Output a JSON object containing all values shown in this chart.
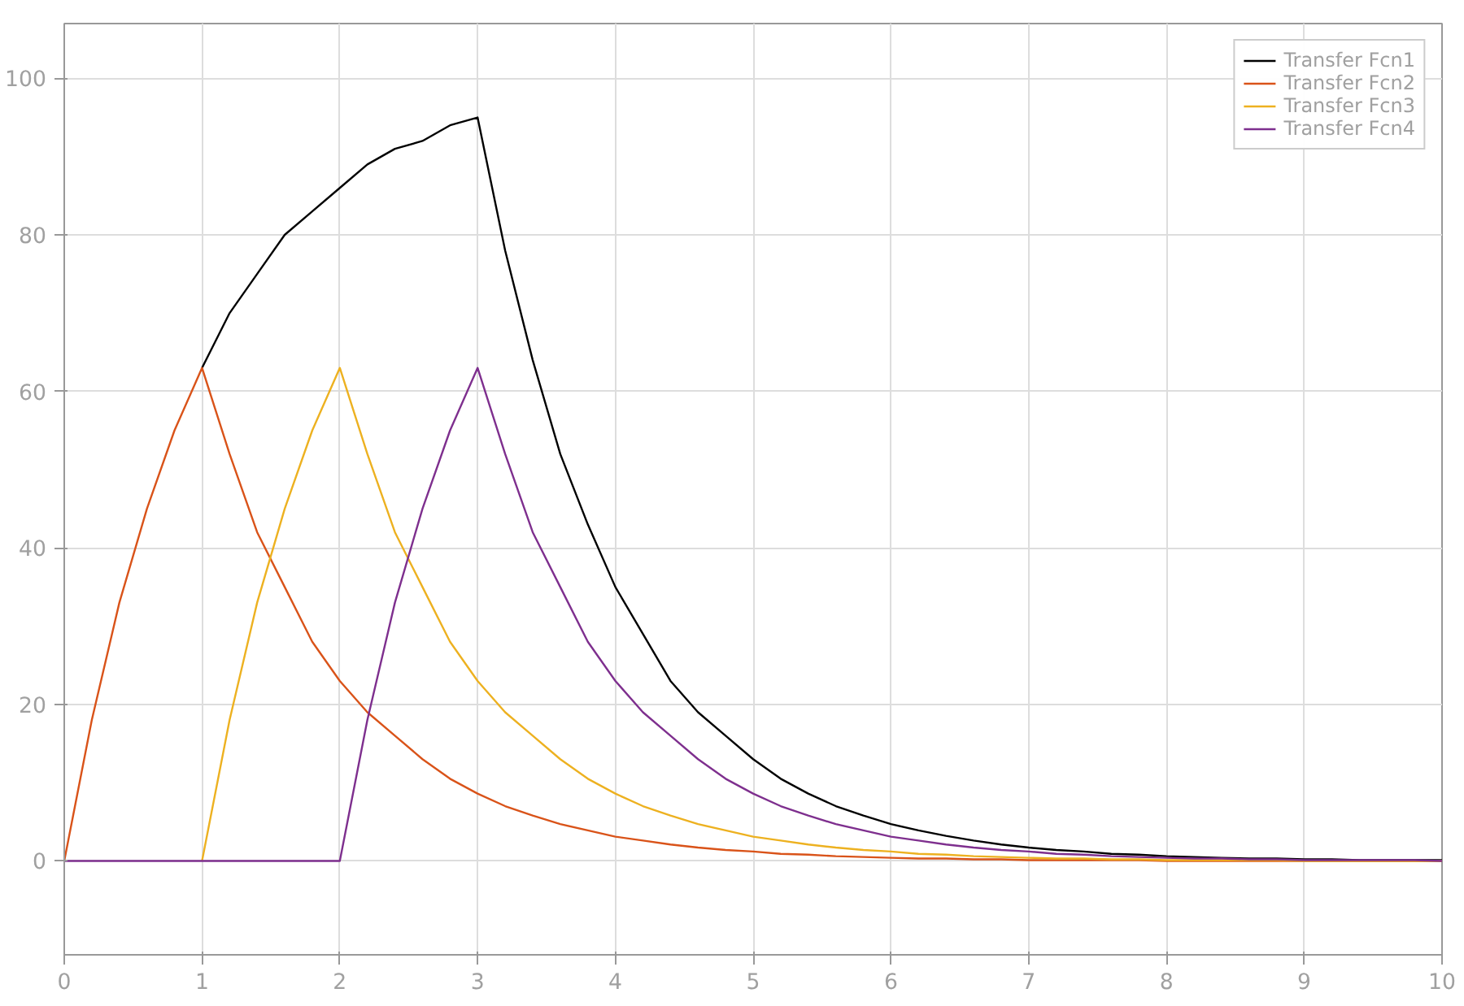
{
  "chart_data": {
    "type": "line",
    "x": [
      0,
      0.2,
      0.4,
      0.6,
      0.8,
      1,
      1.2,
      1.4,
      1.6,
      1.8,
      2,
      2.2,
      2.4,
      2.6,
      2.8,
      3,
      3.2,
      3.4,
      3.6,
      3.8,
      4,
      4.2,
      4.4,
      4.6,
      4.8,
      5,
      5.2,
      5.4,
      5.6,
      5.8,
      6,
      6.2,
      6.4,
      6.6,
      6.8,
      7,
      7.2,
      7.4,
      7.6,
      7.8,
      8,
      8.2,
      8.4,
      8.6,
      8.8,
      9,
      9.2,
      9.4,
      9.6,
      9.8,
      10
    ],
    "series": [
      {
        "name": "Transfer Fcn1",
        "color": "#000000",
        "values": [
          null,
          null,
          null,
          null,
          null,
          63,
          70,
          75,
          80,
          83,
          86,
          89,
          91,
          92,
          94,
          95,
          78,
          64,
          52,
          43,
          35,
          29,
          23,
          19,
          16,
          13,
          10.5,
          8.6,
          7.0,
          5.8,
          4.7,
          3.9,
          3.2,
          2.6,
          2.1,
          1.7,
          1.4,
          1.2,
          0.9,
          0.8,
          0.6,
          0.5,
          0.4,
          0.3,
          0.3,
          0.2,
          0.2,
          0.1,
          0.1,
          0.1,
          0.1
        ]
      },
      {
        "name": "Transfer Fcn2",
        "color": "#d95319",
        "values": [
          0,
          18,
          33,
          45,
          55,
          63,
          52,
          42,
          35,
          28,
          23,
          19,
          16,
          13,
          10.5,
          8.6,
          7.0,
          5.8,
          4.7,
          3.9,
          3.1,
          2.6,
          2.1,
          1.7,
          1.4,
          1.2,
          0.9,
          0.8,
          0.6,
          0.5,
          0.4,
          0.3,
          0.3,
          0.2,
          0.2,
          0.1,
          0.1,
          0.1,
          0.1,
          0.1,
          0,
          0,
          0,
          0,
          0,
          0,
          0,
          0,
          0,
          0,
          0
        ]
      },
      {
        "name": "Transfer Fcn3",
        "color": "#edb120",
        "values": [
          null,
          null,
          null,
          null,
          null,
          0,
          18,
          33,
          45,
          55,
          63,
          52,
          42,
          35,
          28,
          23,
          19,
          16,
          13,
          10.5,
          8.6,
          7.0,
          5.8,
          4.7,
          3.9,
          3.1,
          2.6,
          2.1,
          1.7,
          1.4,
          1.2,
          0.9,
          0.8,
          0.6,
          0.5,
          0.4,
          0.3,
          0.3,
          0.2,
          0.2,
          0.1,
          0.1,
          0.1,
          0.1,
          0.1,
          0,
          0,
          0,
          0,
          0,
          0
        ]
      },
      {
        "name": "Transfer Fcn4",
        "color": "#7e2f8e",
        "values": [
          0,
          0,
          0,
          0,
          0,
          0,
          0,
          0,
          0,
          0,
          0,
          18,
          33,
          45,
          55,
          63,
          52,
          42,
          35,
          28,
          23,
          19,
          16,
          13,
          10.5,
          8.6,
          7.0,
          5.8,
          4.7,
          3.9,
          3.1,
          2.6,
          2.1,
          1.7,
          1.4,
          1.2,
          0.9,
          0.8,
          0.6,
          0.5,
          0.4,
          0.3,
          0.3,
          0.2,
          0.2,
          0.1,
          0.1,
          0.1,
          0.1,
          0.1,
          0
        ]
      }
    ],
    "xlim": [
      0,
      10
    ],
    "xticks": [
      0,
      1,
      2,
      3,
      4,
      5,
      6,
      7,
      8,
      9,
      10
    ],
    "ylim": [
      -12,
      107
    ],
    "yticks": [
      0,
      20,
      40,
      60,
      80,
      100
    ],
    "grid": true,
    "legend": "top right",
    "marker": "none",
    "line_style": "solid"
  }
}
